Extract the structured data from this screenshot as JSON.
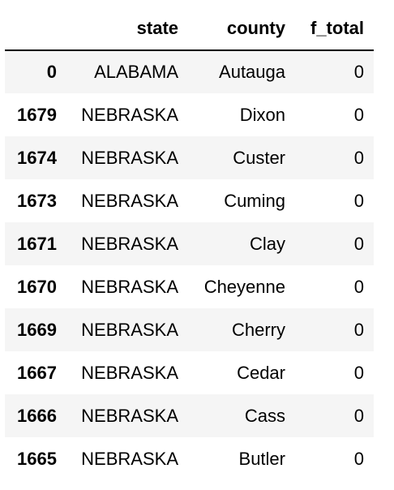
{
  "table": {
    "columns": [
      "",
      "state",
      "county",
      "f_total"
    ],
    "rows": [
      {
        "index": "0",
        "state": "ALABAMA",
        "county": "Autauga",
        "f_total": "0"
      },
      {
        "index": "1679",
        "state": "NEBRASKA",
        "county": "Dixon",
        "f_total": "0"
      },
      {
        "index": "1674",
        "state": "NEBRASKA",
        "county": "Custer",
        "f_total": "0"
      },
      {
        "index": "1673",
        "state": "NEBRASKA",
        "county": "Cuming",
        "f_total": "0"
      },
      {
        "index": "1671",
        "state": "NEBRASKA",
        "county": "Clay",
        "f_total": "0"
      },
      {
        "index": "1670",
        "state": "NEBRASKA",
        "county": "Cheyenne",
        "f_total": "0"
      },
      {
        "index": "1669",
        "state": "NEBRASKA",
        "county": "Cherry",
        "f_total": "0"
      },
      {
        "index": "1667",
        "state": "NEBRASKA",
        "county": "Cedar",
        "f_total": "0"
      },
      {
        "index": "1666",
        "state": "NEBRASKA",
        "county": "Cass",
        "f_total": "0"
      },
      {
        "index": "1665",
        "state": "NEBRASKA",
        "county": "Butler",
        "f_total": "0"
      }
    ]
  }
}
